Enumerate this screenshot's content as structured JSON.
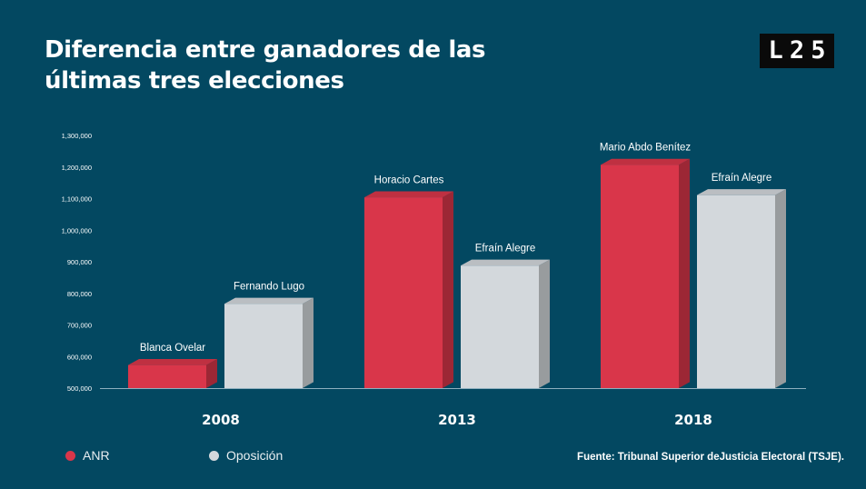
{
  "header": {
    "title_line1": "Diferencia entre ganadores de las",
    "title_line2": "últimas tres elecciones"
  },
  "logo": {
    "chars": [
      "L",
      "2",
      "5"
    ]
  },
  "colors": {
    "background": "#034861",
    "anr": "#d9364a",
    "oposicion": "#d3d8dc"
  },
  "legend": {
    "items": [
      {
        "label": "ANR",
        "color": "#d9364a"
      },
      {
        "label": "Oposición",
        "color": "#d3d8dc"
      }
    ]
  },
  "source": "Fuente: Tribunal Superior deJusticia Electoral (TSJE).",
  "chart_data": {
    "type": "bar",
    "categories": [
      "2008",
      "2013",
      "2018"
    ],
    "series": [
      {
        "name": "ANR",
        "color": "#d9364a",
        "values": [
          573000,
          1104000,
          1207000
        ],
        "labels": [
          "Blanca Ovelar",
          "Horacio Cartes",
          "Mario Abdo Benítez"
        ]
      },
      {
        "name": "Oposición",
        "color": "#d3d8dc",
        "values": [
          767000,
          888000,
          1111000
        ],
        "labels": [
          "Fernando Lugo",
          "Efraín Alegre",
          "Efraín Alegre"
        ]
      }
    ],
    "ylim": [
      500000,
      1300000
    ],
    "yticks": [
      "500,000",
      "600,000",
      "700,000",
      "800,000",
      "900,000",
      "1,000,000",
      "1,100,000",
      "1,200,000",
      "1,300,000"
    ],
    "grid": false,
    "legend_position": "bottom-left"
  }
}
